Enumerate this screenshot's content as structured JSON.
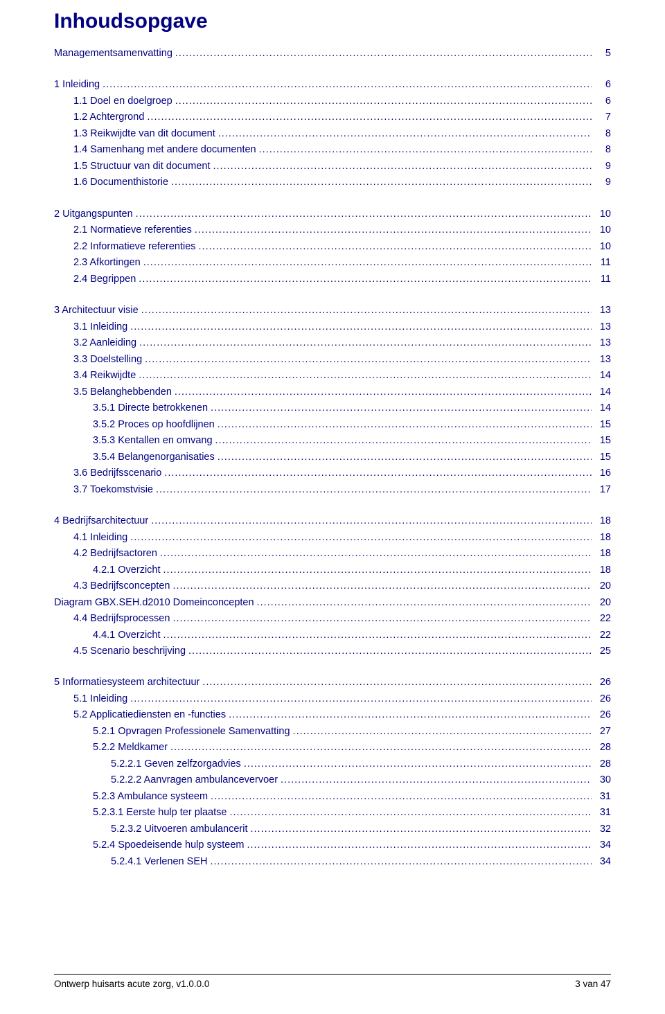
{
  "heading": "Inhoudsopgave",
  "heading_color": "#000080",
  "link_color": "#000080",
  "background_color": "#ffffff",
  "font_family": "Verdana",
  "toc": [
    {
      "indent": 0,
      "label": "Managementsamenvatting",
      "page": "5"
    },
    {
      "spacer": true
    },
    {
      "indent": 0,
      "label": "1   Inleiding",
      "page": "6"
    },
    {
      "indent": 1,
      "label": "1.1   Doel en doelgroep",
      "page": "6"
    },
    {
      "indent": 1,
      "label": "1.2   Achtergrond",
      "page": "7"
    },
    {
      "indent": 1,
      "label": "1.3   Reikwijdte van dit document",
      "page": "8"
    },
    {
      "indent": 1,
      "label": "1.4   Samenhang met andere documenten",
      "page": "8"
    },
    {
      "indent": 1,
      "label": "1.5   Structuur van dit document",
      "page": "9"
    },
    {
      "indent": 1,
      "label": "1.6   Documenthistorie",
      "page": "9"
    },
    {
      "spacer": true
    },
    {
      "indent": 0,
      "label": "2   Uitgangspunten",
      "page": "10"
    },
    {
      "indent": 1,
      "label": "2.1   Normatieve referenties",
      "page": "10"
    },
    {
      "indent": 1,
      "label": "2.2   Informatieve referenties",
      "page": "10"
    },
    {
      "indent": 1,
      "label": "2.3   Afkortingen",
      "page": "11"
    },
    {
      "indent": 1,
      "label": "2.4   Begrippen",
      "page": "11"
    },
    {
      "spacer": true
    },
    {
      "indent": 0,
      "label": "3   Architectuur visie",
      "page": "13"
    },
    {
      "indent": 1,
      "label": "3.1   Inleiding",
      "page": "13"
    },
    {
      "indent": 1,
      "label": "3.2   Aanleiding",
      "page": "13"
    },
    {
      "indent": 1,
      "label": "3.3   Doelstelling",
      "page": "13"
    },
    {
      "indent": 1,
      "label": "3.4   Reikwijdte",
      "page": "14"
    },
    {
      "indent": 1,
      "label": "3.5   Belanghebbenden",
      "page": "14"
    },
    {
      "indent": 2,
      "label": "3.5.1   Directe betrokkenen",
      "page": "14"
    },
    {
      "indent": 2,
      "label": "3.5.2   Proces op hoofdlijnen",
      "page": "15"
    },
    {
      "indent": 2,
      "label": "3.5.3   Kentallen en omvang",
      "page": "15"
    },
    {
      "indent": 2,
      "label": "3.5.4   Belangenorganisaties",
      "page": "15"
    },
    {
      "indent": 1,
      "label": "3.6   Bedrijfsscenario",
      "page": "16"
    },
    {
      "indent": 1,
      "label": "3.7   Toekomstvisie",
      "page": "17"
    },
    {
      "spacer": true
    },
    {
      "indent": 0,
      "label": "4   Bedrijfsarchitectuur",
      "page": "18"
    },
    {
      "indent": 1,
      "label": "4.1   Inleiding",
      "page": "18"
    },
    {
      "indent": 1,
      "label": "4.2   Bedrijfsactoren",
      "page": "18"
    },
    {
      "indent": 2,
      "label": "4.2.1   Overzicht",
      "page": "18"
    },
    {
      "indent": 1,
      "label": "4.3   Bedrijfsconcepten",
      "page": "20"
    },
    {
      "indent": 0,
      "label": "Diagram GBX.SEH.d2010 Domeinconcepten",
      "page": "20"
    },
    {
      "indent": 1,
      "label": "4.4   Bedrijfsprocessen",
      "page": "22"
    },
    {
      "indent": 2,
      "label": "4.4.1   Overzicht",
      "page": "22"
    },
    {
      "indent": 1,
      "label": "4.5   Scenario beschrijving",
      "page": "25"
    },
    {
      "spacer": true
    },
    {
      "indent": 0,
      "label": "5   Informatiesysteem architectuur",
      "page": "26"
    },
    {
      "indent": 1,
      "label": "5.1   Inleiding",
      "page": "26"
    },
    {
      "indent": 1,
      "label": "5.2   Applicatiediensten en -functies",
      "page": "26"
    },
    {
      "indent": 2,
      "label": "5.2.1   Opvragen Professionele Samenvatting",
      "page": "27"
    },
    {
      "indent": 2,
      "label": "5.2.2   Meldkamer",
      "page": "28"
    },
    {
      "indent": 3,
      "label": "5.2.2.1   Geven zelfzorgadvies",
      "page": "28"
    },
    {
      "indent": 3,
      "label": "5.2.2.2   Aanvragen ambulancevervoer",
      "page": "30"
    },
    {
      "indent": 2,
      "label": "5.2.3 Ambulance systeem",
      "page": "31"
    },
    {
      "indent": 2,
      "label": "5.2.3.1 Eerste hulp ter plaatse",
      "page": "31"
    },
    {
      "indent": 3,
      "label": "5.2.3.2 Uitvoeren ambulancerit",
      "page": "32"
    },
    {
      "indent": 2,
      "label": "5.2.4   Spoedeisende hulp systeem",
      "page": "34"
    },
    {
      "indent": 3,
      "label": "5.2.4.1   Verlenen SEH",
      "page": "34"
    }
  ],
  "footer": {
    "left": "Ontwerp huisarts acute zorg, v1.0.0.0",
    "right": "3 van 47"
  }
}
